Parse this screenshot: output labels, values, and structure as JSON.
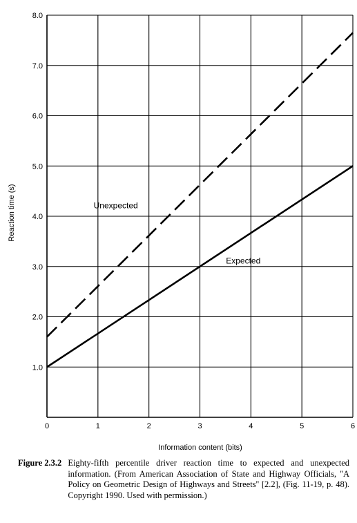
{
  "chart_data": {
    "type": "line",
    "xlabel": "Information content (bits)",
    "ylabel": "Reaction time (s)",
    "xlim": [
      0,
      6
    ],
    "ylim": [
      0,
      8
    ],
    "xticks": [
      "0",
      "1",
      "2",
      "3",
      "4",
      "5",
      "6"
    ],
    "yticks": [
      "1.0",
      "2.0",
      "3.0",
      "4.0",
      "5.0",
      "6.0",
      "7.0",
      "8.0"
    ],
    "grid": true,
    "series": [
      {
        "name": "Unexpected",
        "style": "dashed",
        "x": [
          0,
          6
        ],
        "y": [
          1.6,
          7.65
        ]
      },
      {
        "name": "Expected",
        "style": "solid",
        "x": [
          0,
          6
        ],
        "y": [
          1.0,
          5.0
        ]
      }
    ]
  },
  "caption": {
    "label": "Figure 2.3.2",
    "text": "Eighty-fifth percentile driver reaction time to expected and unexpected information. (From American Association of State and Highway Officials, ''A Policy on Geometric Design of Highways and Streets'' [2.2], (Fig. 11-19, p. 48). Copyright 1990. Used with permission.)"
  }
}
